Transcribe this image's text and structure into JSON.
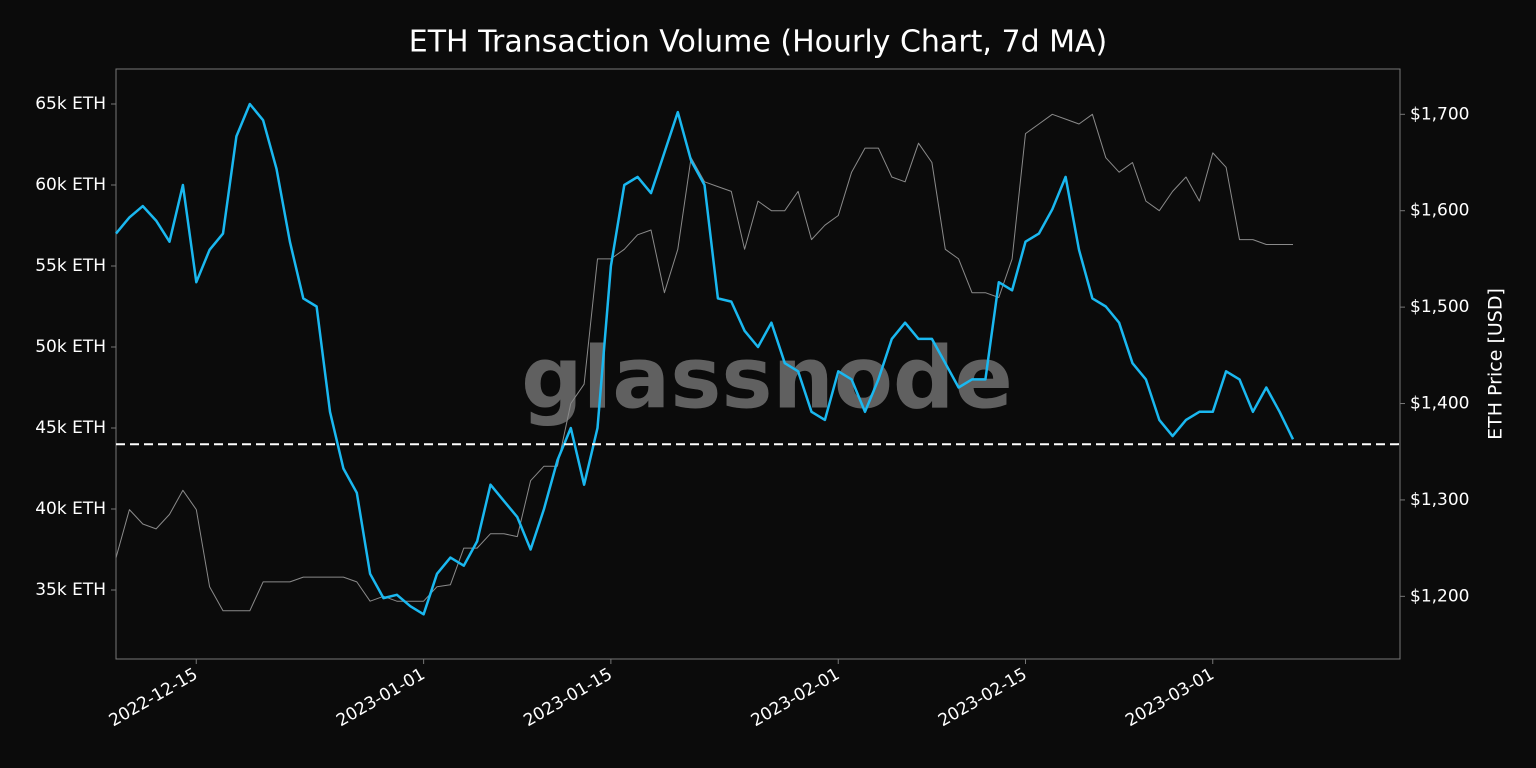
{
  "chart_data": {
    "type": "line",
    "title": "ETH Transaction Volume (Hourly Chart, 7d MA)",
    "y2label": "ETH Price [USD]",
    "watermark": "glassnode",
    "x": [
      "2022-12-09",
      "2022-12-10",
      "2022-12-11",
      "2022-12-12",
      "2022-12-13",
      "2022-12-14",
      "2022-12-15",
      "2022-12-16",
      "2022-12-17",
      "2022-12-18",
      "2022-12-19",
      "2022-12-20",
      "2022-12-21",
      "2022-12-22",
      "2022-12-23",
      "2022-12-24",
      "2022-12-25",
      "2022-12-26",
      "2022-12-27",
      "2022-12-28",
      "2022-12-29",
      "2022-12-30",
      "2022-12-31",
      "2023-01-01",
      "2023-01-02",
      "2023-01-03",
      "2023-01-04",
      "2023-01-05",
      "2023-01-06",
      "2023-01-07",
      "2023-01-08",
      "2023-01-09",
      "2023-01-10",
      "2023-01-11",
      "2023-01-12",
      "2023-01-13",
      "2023-01-14",
      "2023-01-15",
      "2023-01-16",
      "2023-01-17",
      "2023-01-18",
      "2023-01-19",
      "2023-01-20",
      "2023-01-21",
      "2023-01-22",
      "2023-01-23",
      "2023-01-24",
      "2023-01-25",
      "2023-01-26",
      "2023-01-27",
      "2023-01-28",
      "2023-01-29",
      "2023-01-30",
      "2023-01-31",
      "2023-02-01",
      "2023-02-02",
      "2023-02-03",
      "2023-02-04",
      "2023-02-05",
      "2023-02-06",
      "2023-02-07",
      "2023-02-08",
      "2023-02-09",
      "2023-02-10",
      "2023-02-11",
      "2023-02-12",
      "2023-02-13",
      "2023-02-14",
      "2023-02-15",
      "2023-02-16",
      "2023-02-17",
      "2023-02-18",
      "2023-02-19",
      "2023-02-20",
      "2023-02-21",
      "2023-02-22",
      "2023-02-23",
      "2023-02-24",
      "2023-02-25",
      "2023-02-26",
      "2023-02-27",
      "2023-02-28",
      "2023-03-01",
      "2023-03-02",
      "2023-03-03",
      "2023-03-04",
      "2023-03-05",
      "2023-03-06",
      "2023-03-07"
    ],
    "series": [
      {
        "color": "#1ab8f0",
        "values": [
          57000,
          58000,
          58700,
          57800,
          56500,
          60000,
          54000,
          56000,
          57000,
          63000,
          65000,
          64000,
          61000,
          56500,
          53000,
          52500,
          46000,
          42500,
          41000,
          36000,
          34500,
          34700,
          34000,
          33500,
          36000,
          37000,
          36500,
          38000,
          41500,
          40500,
          39500,
          37500,
          40000,
          43000,
          45000,
          41500,
          45000,
          55000,
          60000,
          60500,
          59500,
          62000,
          64500,
          61500,
          60000,
          53000,
          52800,
          51000,
          50000,
          51500,
          49000,
          48500,
          46000,
          45500,
          48500,
          48000,
          46000,
          48000,
          50500,
          51500,
          50500,
          50500,
          49000,
          47500,
          48000,
          48000,
          54000,
          53500,
          56500,
          57000,
          58500,
          60500,
          56000,
          53000,
          52500,
          51500,
          49000,
          48000,
          45500,
          44500,
          45500,
          46000,
          46000,
          48500,
          48000,
          46000,
          47500,
          46000,
          44300
        ]
      },
      {
        "color": "#8a8a8a",
        "axis": "y2",
        "values": [
          1240,
          1290,
          1275,
          1270,
          1285,
          1310,
          1290,
          1210,
          1185,
          1185,
          1185,
          1215,
          1215,
          1215,
          1220,
          1220,
          1220,
          1220,
          1215,
          1195,
          1200,
          1195,
          1195,
          1195,
          1210,
          1212,
          1250,
          1250,
          1265,
          1265,
          1262,
          1320,
          1335,
          1335,
          1400,
          1420,
          1550,
          1550,
          1560,
          1575,
          1580,
          1515,
          1560,
          1655,
          1630,
          1625,
          1620,
          1560,
          1610,
          1600,
          1600,
          1620,
          1570,
          1585,
          1595,
          1640,
          1665,
          1665,
          1635,
          1630,
          1670,
          1650,
          1560,
          1550,
          1515,
          1515,
          1510,
          1550,
          1680,
          1690,
          1700,
          1695,
          1690,
          1700,
          1655,
          1640,
          1650,
          1610,
          1600,
          1620,
          1635,
          1610,
          1660,
          1645,
          1570,
          1570,
          1565,
          1565,
          1565
        ]
      }
    ],
    "reference_line": 44000,
    "xlim": [
      "2022-12-09",
      "2023-03-15"
    ],
    "xticks": [
      "2022-12-15",
      "2023-01-01",
      "2023-01-15",
      "2023-02-01",
      "2023-02-15",
      "2023-03-01"
    ],
    "ylim": [
      30740,
      67160
    ],
    "yticks": [
      {
        "value": 35000,
        "label": "35k ETH"
      },
      {
        "value": 40000,
        "label": "40k ETH"
      },
      {
        "value": 45000,
        "label": "45k ETH"
      },
      {
        "value": 50000,
        "label": "50k ETH"
      },
      {
        "value": 55000,
        "label": "55k ETH"
      },
      {
        "value": 60000,
        "label": "60k ETH"
      },
      {
        "value": 65000,
        "label": "65k ETH"
      }
    ],
    "y2lim": [
      1135,
      1747
    ],
    "y2ticks": [
      {
        "value": 1200,
        "label": "$1,200"
      },
      {
        "value": 1300,
        "label": "$1,300"
      },
      {
        "value": 1400,
        "label": "$1,400"
      },
      {
        "value": 1500,
        "label": "$1,500"
      },
      {
        "value": 1600,
        "label": "$1,600"
      },
      {
        "value": 1700,
        "label": "$1,700"
      }
    ]
  }
}
